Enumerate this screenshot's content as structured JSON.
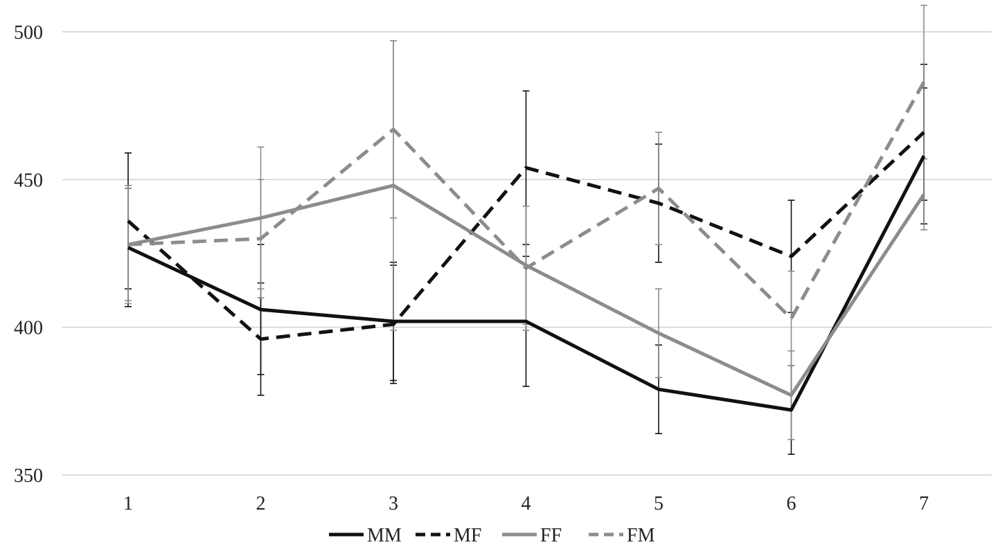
{
  "chart_data": {
    "type": "line",
    "title": "",
    "xlabel": "",
    "ylabel": "",
    "categories": [
      "1",
      "2",
      "3",
      "4",
      "5",
      "6",
      "7"
    ],
    "ylim": [
      350,
      500
    ],
    "yticks": [
      350,
      400,
      450,
      500
    ],
    "grid": true,
    "legend_position": "bottom",
    "series": [
      {
        "name": "MM",
        "color": "#111111",
        "dash": "solid",
        "values": [
          427,
          406,
          402,
          402,
          379,
          372,
          458
        ],
        "error": [
          20,
          22,
          20,
          22,
          15,
          15,
          23
        ]
      },
      {
        "name": "MF",
        "color": "#111111",
        "dash": "dashed",
        "values": [
          436,
          396,
          401,
          454,
          442,
          424,
          466
        ],
        "error": [
          23,
          19,
          20,
          26,
          20,
          19,
          23
        ]
      },
      {
        "name": "FF",
        "color": "#8c8c8c",
        "dash": "solid",
        "values": [
          428,
          437,
          448,
          421,
          398,
          377,
          445
        ],
        "error": [
          20,
          24,
          49,
          20,
          15,
          15,
          12
        ]
      },
      {
        "name": "FM",
        "color": "#8c8c8c",
        "dash": "dashed",
        "values": [
          428,
          430,
          467,
          420,
          447,
          403,
          483
        ],
        "error": [
          19,
          20,
          30,
          21,
          19,
          16,
          26
        ]
      }
    ]
  }
}
